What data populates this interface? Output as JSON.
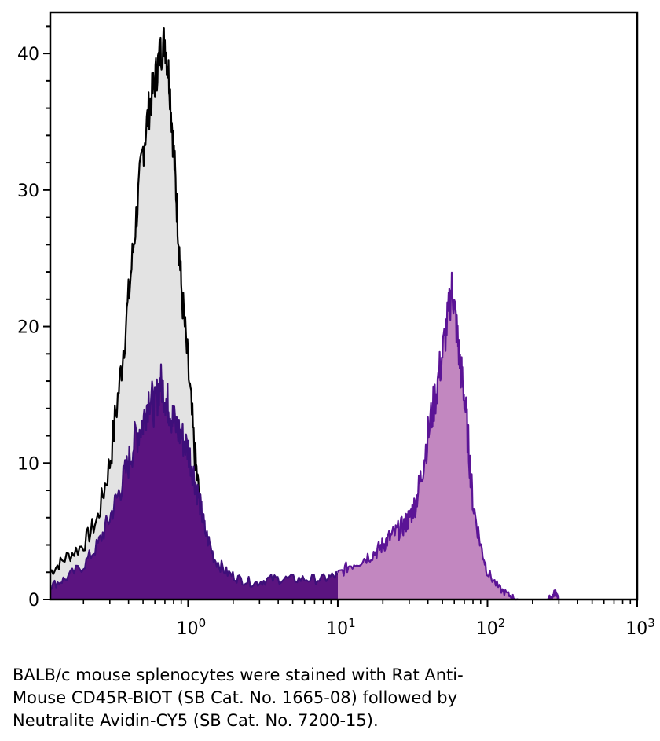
{
  "chart_data": {
    "type": "area",
    "x_scale": "log",
    "xlim": [
      0.12,
      1000
    ],
    "ylim": [
      0,
      43
    ],
    "x_ticks": [
      {
        "value": 1,
        "base": "10",
        "exp": "0"
      },
      {
        "value": 10,
        "base": "10",
        "exp": "1"
      },
      {
        "value": 100,
        "base": "10",
        "exp": "2"
      },
      {
        "value": 1000,
        "base": "10",
        "exp": "3"
      }
    ],
    "y_ticks": [
      {
        "value": 0,
        "label": "0"
      },
      {
        "value": 10,
        "label": "10"
      },
      {
        "value": 20,
        "label": "20"
      },
      {
        "value": 30,
        "label": "30"
      },
      {
        "value": 40,
        "label": "40"
      }
    ],
    "grid": false,
    "legend": "none",
    "series": [
      {
        "fill": "#e3e3e3",
        "stroke": "#000000",
        "x": [
          0.12,
          0.15,
          0.2,
          0.25,
          0.3,
          0.35,
          0.4,
          0.45,
          0.5,
          0.55,
          0.6,
          0.65,
          0.7,
          0.75,
          0.8,
          0.85,
          0.9,
          1.0,
          1.1,
          1.2,
          1.3,
          1.5,
          1.7,
          2.0,
          2.3
        ],
        "y": [
          2,
          3,
          4,
          6,
          10,
          16,
          22,
          28,
          33,
          36,
          38,
          40,
          41,
          38,
          33,
          28,
          23,
          17,
          11,
          7,
          4,
          2,
          1,
          0.3,
          0
        ]
      },
      {
        "fill": "#5b1480",
        "stroke": "#3e0f7a",
        "x": [
          0.12,
          0.15,
          0.2,
          0.25,
          0.3,
          0.35,
          0.4,
          0.45,
          0.5,
          0.55,
          0.6,
          0.65,
          0.7,
          0.75,
          0.8,
          0.9,
          1.0,
          1.1,
          1.2,
          1.3,
          1.5,
          1.8,
          2.2,
          2.8,
          3.5,
          4.5,
          6,
          8,
          10
        ],
        "y": [
          1,
          1.5,
          2.5,
          4,
          6,
          8,
          10,
          12,
          13,
          15,
          14,
          16,
          15,
          14,
          13,
          12,
          11,
          9,
          7,
          5,
          3,
          2,
          1.5,
          1.2,
          1.5,
          1.5,
          1.5,
          1.5,
          1.8
        ]
      },
      {
        "fill": "#c287c0",
        "stroke": "#5b1496",
        "x": [
          10,
          12,
          15,
          18,
          20,
          22,
          25,
          28,
          30,
          33,
          36,
          40,
          45,
          50,
          55,
          58,
          62,
          66,
          70,
          75,
          80,
          90,
          100,
          120,
          140,
          160
        ],
        "y": [
          1.8,
          2.5,
          3,
          3.5,
          4,
          4.5,
          5,
          5.5,
          6,
          7,
          9,
          12,
          15,
          18,
          21,
          23,
          20,
          17,
          15,
          11,
          7,
          4,
          2,
          0.8,
          0.3,
          0
        ]
      },
      {
        "fill": "#c287c0",
        "stroke": "#5b1496",
        "x": [
          250,
          270,
          285,
          300
        ],
        "y": [
          0,
          0.2,
          0.6,
          0
        ]
      }
    ]
  },
  "caption": [
    "BALB/c mouse splenocytes were stained with Rat Anti-",
    "Mouse CD45R-BIOT (SB Cat. No. 1665-08) followed by",
    "Neutralite Avidin-CY5 (SB Cat. No. 7200-15)."
  ]
}
